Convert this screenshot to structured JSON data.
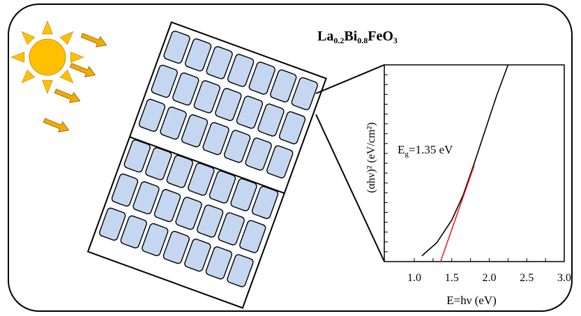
{
  "title": {
    "el1": "La",
    "sub1": "0.2",
    "el2": "Bi",
    "sub2": "0.8",
    "el3": "FeO",
    "sub3": "3"
  },
  "colors": {
    "sun_fill": "#FFC000",
    "arrow_fill": "#F5A800",
    "cell_fill": "#C5D7F0",
    "fit_line": "#FF0000",
    "curve": "#000000"
  },
  "icons": [
    "sun-icon",
    "light-ray-arrow-icon"
  ],
  "panel": {
    "rows": 6,
    "cols": 7
  },
  "chart_data": {
    "type": "line",
    "xlabel": "E=hν (eV)",
    "ylabel": "(αhν)² (eV/cm²)",
    "xlim": [
      0.6,
      3.0
    ],
    "xticks": [
      "1.0",
      "1.5",
      "2.0",
      "2.5",
      "3.0"
    ],
    "annotation": {
      "prefix": "E",
      "sub": "g",
      "value": "=1.35 eV"
    },
    "series": [
      {
        "x": [
          1.1,
          1.3,
          1.5,
          1.65,
          1.8,
          1.95,
          2.1,
          2.25
        ],
        "y": [
          0.03,
          0.1,
          0.22,
          0.35,
          0.52,
          0.7,
          0.88,
          1.04
        ]
      }
    ],
    "fit_line": {
      "x": [
        1.35,
        1.8
      ],
      "y": [
        0.0,
        0.51
      ]
    }
  }
}
